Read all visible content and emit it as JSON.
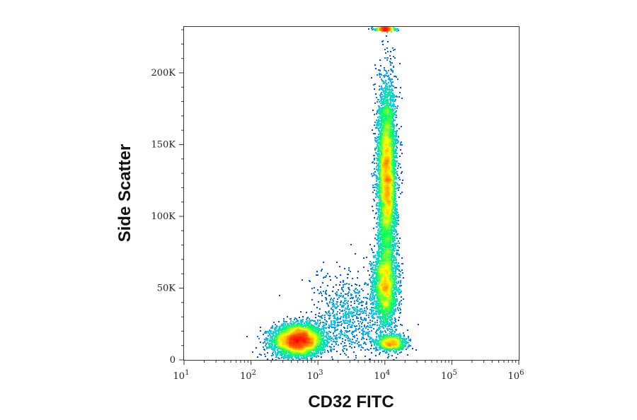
{
  "chart_data": {
    "type": "scatter",
    "subtype": "flow-cytometry-density-dot-plot",
    "title": "",
    "xlabel": "CD32 FITC",
    "ylabel": "Side Scatter",
    "x_scale": "log",
    "xlim": [
      10,
      1000000
    ],
    "ylim": [
      0,
      232000
    ],
    "x_ticks": [
      {
        "base": "10",
        "exp": "1",
        "value": 10
      },
      {
        "base": "10",
        "exp": "2",
        "value": 100
      },
      {
        "base": "10",
        "exp": "3",
        "value": 1000
      },
      {
        "base": "10",
        "exp": "4",
        "value": 10000
      },
      {
        "base": "10",
        "exp": "5",
        "value": 100000
      },
      {
        "base": "10",
        "exp": "6",
        "value": 1000000
      }
    ],
    "y_ticks": [
      {
        "label": "0",
        "value": 0
      },
      {
        "label": "50K",
        "value": 50000
      },
      {
        "label": "100K",
        "value": 100000
      },
      {
        "label": "150K",
        "value": 150000
      },
      {
        "label": "200K",
        "value": 200000
      }
    ],
    "color_scale": [
      "#0000ff",
      "#00c8ff",
      "#00ff66",
      "#ffff00",
      "#ff6600",
      "#ff0000"
    ],
    "grid": false,
    "populations": [
      {
        "x_center": 500,
        "x_log_sd": 0.19,
        "y_center": 14000,
        "y_sd": 5500,
        "peak_color": "red",
        "relative_size": 0.3
      },
      {
        "x_center": 10500,
        "x_log_sd": 0.07,
        "y_center": 128000,
        "y_sd": 32000,
        "peak_color": "red",
        "relative_size": 0.38
      },
      {
        "x_center": 10000,
        "x_log_sd": 0.09,
        "y_center": 52000,
        "y_sd": 14000,
        "peak_color": "cyan",
        "relative_size": 0.17
      },
      {
        "x_center": 12000,
        "x_log_sd": 0.12,
        "y_center": 12000,
        "y_sd": 3000,
        "peak_color": "cyan",
        "relative_size": 0.06
      },
      {
        "x_center": 3000,
        "x_log_sd": 0.3,
        "y_center": 30000,
        "y_sd": 15000,
        "peak_color": "blue",
        "relative_size": 0.06
      },
      {
        "x_center": 10000,
        "x_log_sd": 0.07,
        "y_center": 231000,
        "y_sd": 600,
        "peak_color": "cyan",
        "relative_size": 0.03
      }
    ]
  }
}
